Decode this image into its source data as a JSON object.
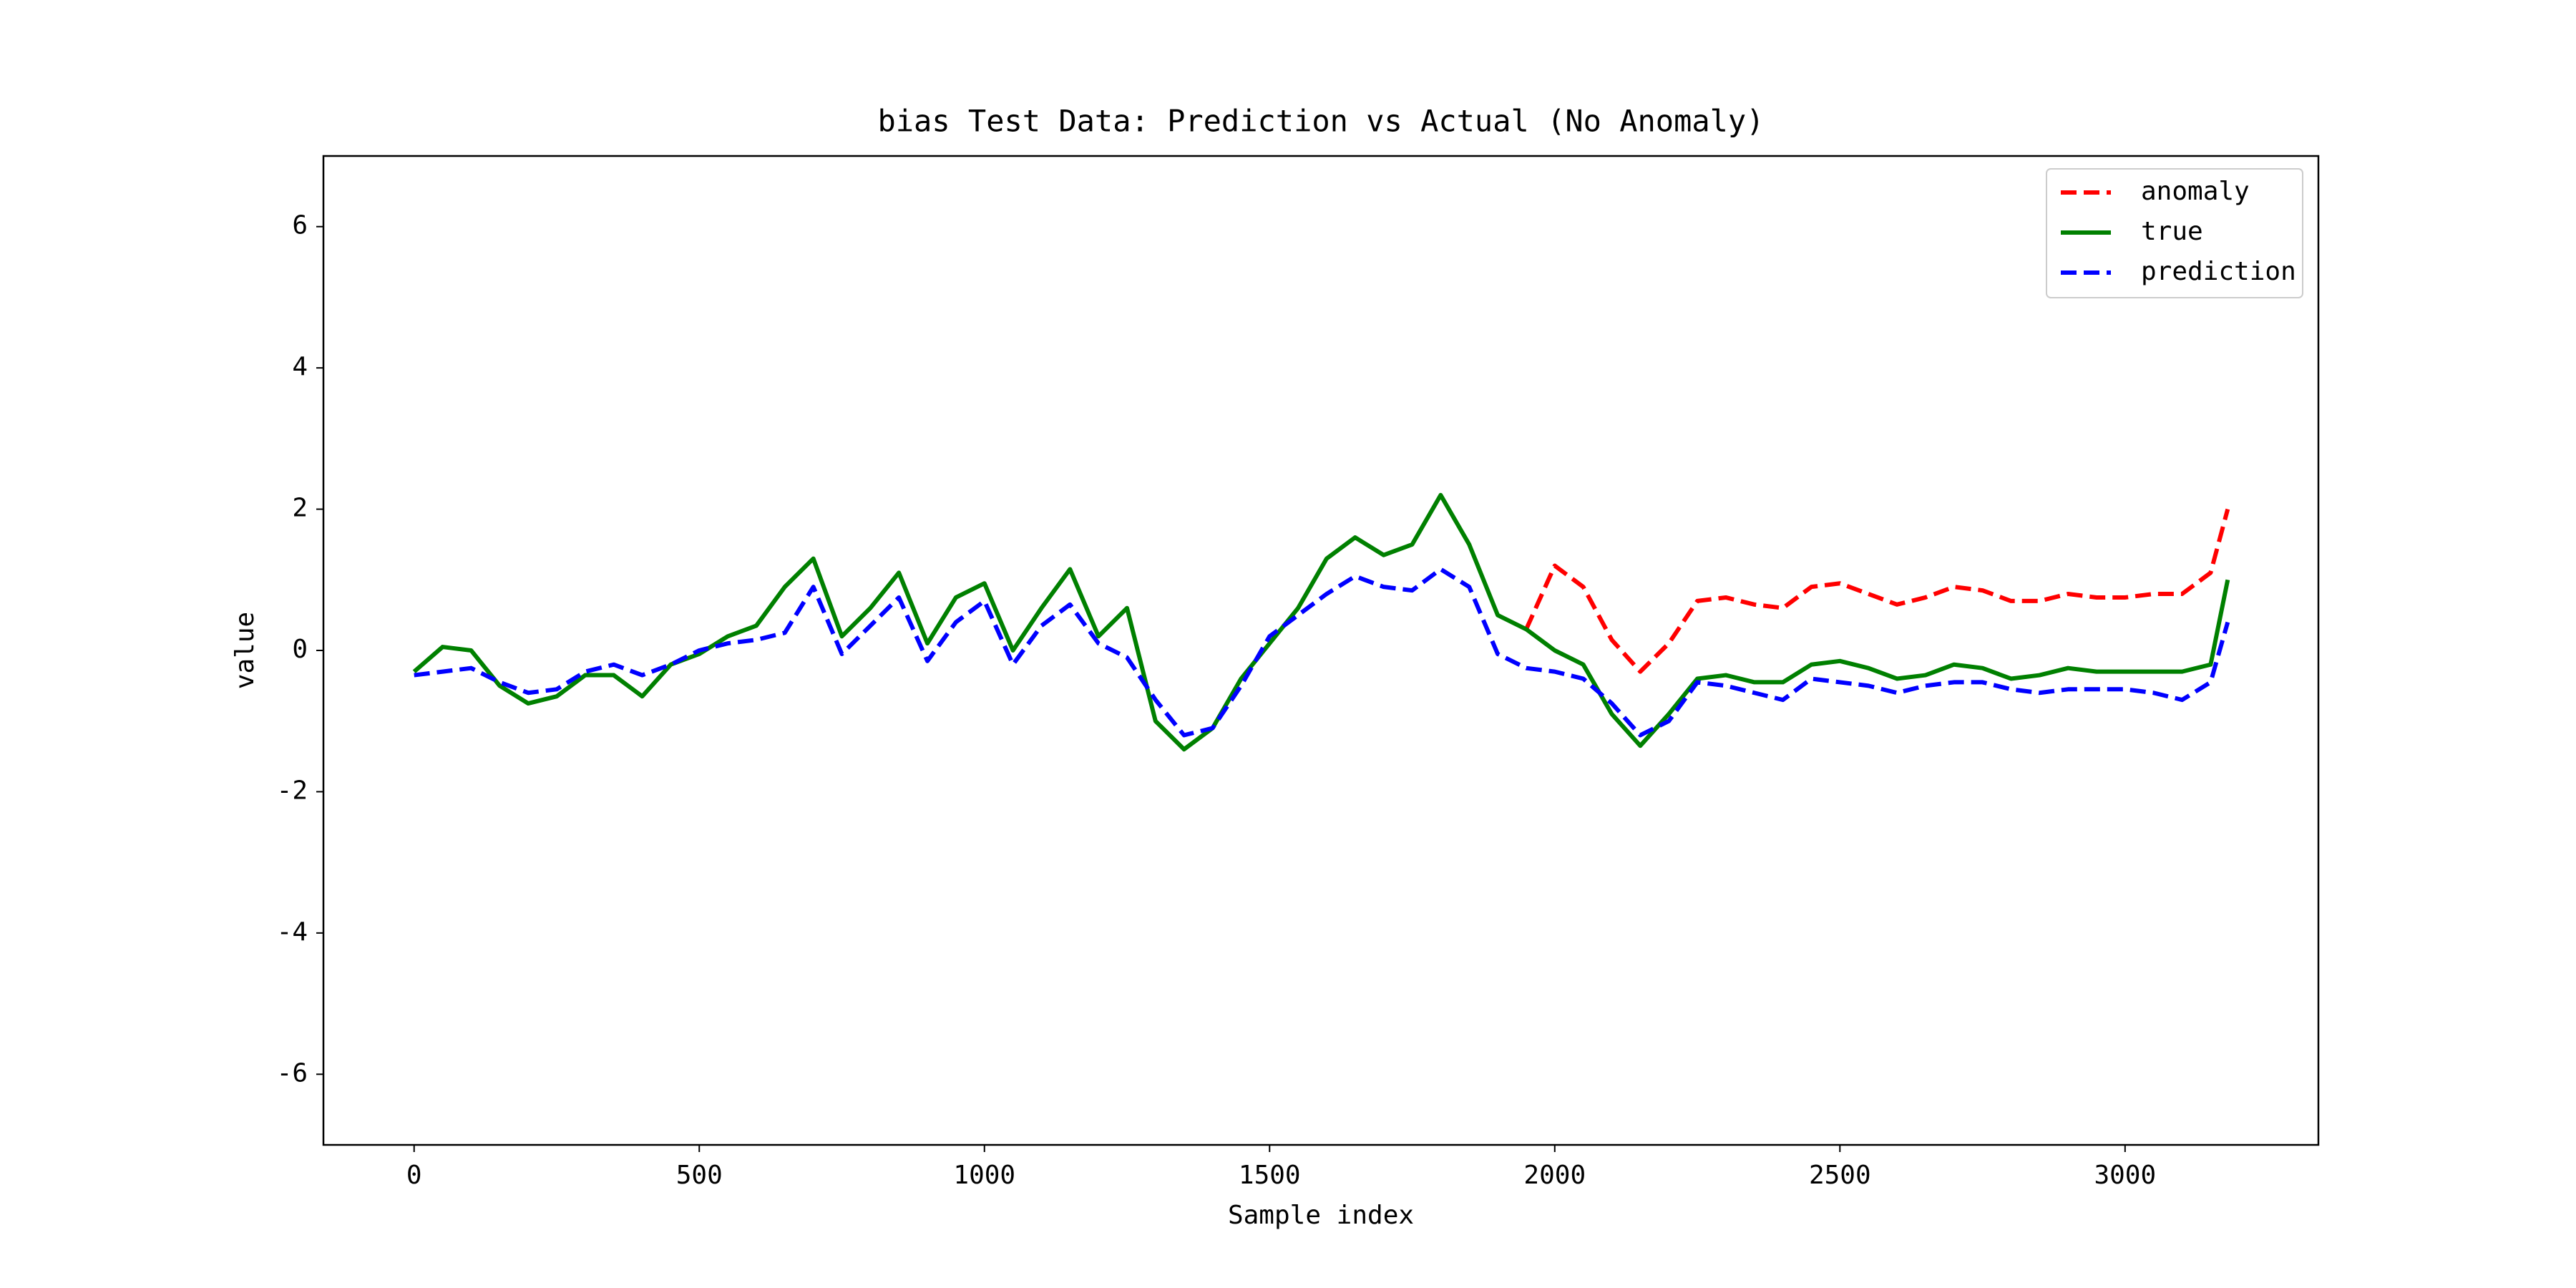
{
  "chart_data": {
    "type": "line",
    "title": "bias Test Data: Prediction vs Actual (No Anomaly)",
    "xlabel": "Sample index",
    "ylabel": "value",
    "x": [
      0,
      50,
      100,
      150,
      200,
      250,
      300,
      350,
      400,
      450,
      500,
      550,
      600,
      650,
      700,
      750,
      800,
      850,
      900,
      950,
      1000,
      1050,
      1100,
      1150,
      1200,
      1250,
      1300,
      1350,
      1400,
      1450,
      1500,
      1550,
      1600,
      1650,
      1700,
      1750,
      1800,
      1850,
      1900,
      1950,
      2000,
      2050,
      2100,
      2150,
      2200,
      2250,
      2300,
      2350,
      2400,
      2450,
      2500,
      2550,
      2600,
      2650,
      2700,
      2750,
      2800,
      2850,
      2900,
      2950,
      3000,
      3050,
      3100,
      3150,
      3180
    ],
    "series": [
      {
        "name": "anomaly",
        "color": "#ff0000",
        "style": "dashed",
        "values": [
          null,
          null,
          null,
          null,
          null,
          null,
          null,
          null,
          null,
          null,
          null,
          null,
          null,
          null,
          null,
          null,
          null,
          null,
          null,
          null,
          null,
          null,
          null,
          null,
          null,
          null,
          null,
          null,
          null,
          null,
          null,
          null,
          null,
          null,
          null,
          null,
          null,
          null,
          null,
          0.3,
          1.2,
          0.9,
          0.15,
          -0.3,
          0.1,
          0.7,
          0.75,
          0.65,
          0.6,
          0.9,
          0.95,
          0.8,
          0.65,
          0.75,
          0.9,
          0.85,
          0.7,
          0.7,
          0.8,
          0.75,
          0.75,
          0.8,
          0.8,
          1.1,
          2.0
        ]
      },
      {
        "name": "true",
        "color": "#008000",
        "style": "solid",
        "values": [
          -0.3,
          0.05,
          0.0,
          -0.5,
          -0.75,
          -0.65,
          -0.35,
          -0.35,
          -0.65,
          -0.2,
          -0.05,
          0.2,
          0.35,
          0.9,
          1.3,
          0.2,
          0.6,
          1.1,
          0.1,
          0.75,
          0.95,
          0.0,
          0.6,
          1.15,
          0.2,
          0.6,
          -1.0,
          -1.4,
          -1.1,
          -0.4,
          0.1,
          0.6,
          1.3,
          1.6,
          1.35,
          1.5,
          2.2,
          1.5,
          0.5,
          0.3,
          0.0,
          -0.2,
          -0.9,
          -1.35,
          -0.9,
          -0.4,
          -0.35,
          -0.45,
          -0.45,
          -0.2,
          -0.15,
          -0.25,
          -0.4,
          -0.35,
          -0.2,
          -0.25,
          -0.4,
          -0.35,
          -0.25,
          -0.3,
          -0.3,
          -0.3,
          -0.3,
          -0.2,
          1.0
        ]
      },
      {
        "name": "prediction",
        "color": "#0000ff",
        "style": "dashed",
        "values": [
          -0.35,
          -0.3,
          -0.25,
          -0.45,
          -0.6,
          -0.55,
          -0.3,
          -0.2,
          -0.35,
          -0.2,
          0.0,
          0.1,
          0.15,
          0.25,
          0.9,
          -0.05,
          0.35,
          0.75,
          -0.15,
          0.4,
          0.7,
          -0.2,
          0.35,
          0.65,
          0.1,
          -0.1,
          -0.7,
          -1.2,
          -1.1,
          -0.5,
          0.2,
          0.5,
          0.8,
          1.05,
          0.9,
          0.85,
          1.15,
          0.9,
          -0.05,
          -0.25,
          -0.3,
          -0.4,
          -0.75,
          -1.2,
          -1.0,
          -0.45,
          -0.5,
          -0.6,
          -0.7,
          -0.4,
          -0.45,
          -0.5,
          -0.6,
          -0.5,
          -0.45,
          -0.45,
          -0.55,
          -0.6,
          -0.55,
          -0.55,
          -0.55,
          -0.6,
          -0.7,
          -0.45,
          0.4
        ]
      }
    ],
    "xlim": [
      -159,
      3339
    ],
    "xticks": [
      0,
      500,
      1000,
      1500,
      2000,
      2500,
      3000
    ],
    "ylim": [
      -7,
      7
    ],
    "yticks": [
      -6,
      -4,
      -2,
      0,
      2,
      4,
      6
    ],
    "legend": "upper right"
  }
}
